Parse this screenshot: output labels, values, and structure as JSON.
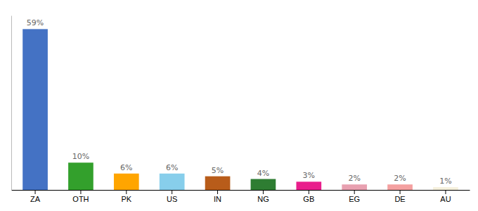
{
  "chart_data": {
    "type": "bar",
    "categories": [
      "ZA",
      "OTH",
      "PK",
      "US",
      "IN",
      "NG",
      "GB",
      "EG",
      "DE",
      "AU"
    ],
    "values": [
      59,
      10,
      6,
      6,
      5,
      4,
      3,
      2,
      2,
      1
    ],
    "value_labels": [
      "59%",
      "10%",
      "6%",
      "6%",
      "5%",
      "4%",
      "3%",
      "2%",
      "2%",
      "1%"
    ],
    "colors": [
      "#4472c4",
      "#33a02c",
      "#ffa500",
      "#87ceeb",
      "#b85c1a",
      "#2e7d32",
      "#e91e8c",
      "#e8a0b0",
      "#f4a0a0",
      "#f5f0dc"
    ],
    "ylim": [
      0,
      64
    ],
    "data_labels": true,
    "tick_labels": "x",
    "grid": false
  }
}
